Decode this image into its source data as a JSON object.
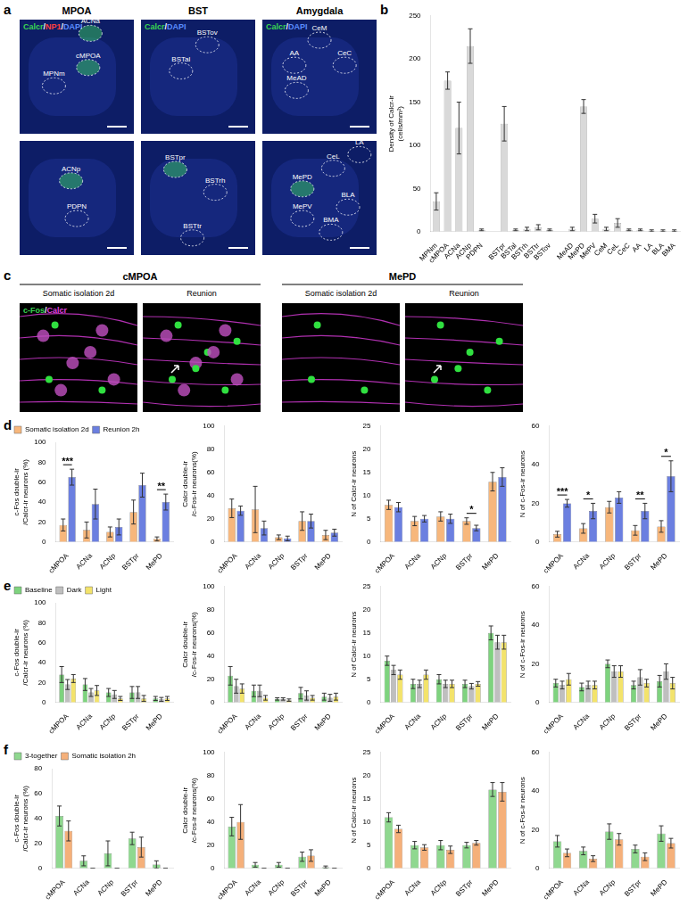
{
  "panel_labels": [
    "a",
    "b",
    "c",
    "d",
    "e",
    "f"
  ],
  "panel_a": {
    "columns": [
      "MPOA",
      "BST",
      "Amygdala"
    ],
    "images": [
      {
        "channels": [
          {
            "text": "Calcr",
            "color": "#39d353"
          },
          {
            "text": "/",
            "color": "#ffffff"
          },
          {
            "text": "NP1",
            "color": "#ff4040"
          },
          {
            "text": "/",
            "color": "#ffffff"
          },
          {
            "text": "DAPI",
            "color": "#5a8cff"
          }
        ],
        "regions": [
          "ACNa",
          "cMPOA",
          "MPNm"
        ]
      },
      {
        "channels": [
          {
            "text": "Calcr",
            "color": "#39d353"
          },
          {
            "text": "/",
            "color": "#ffffff"
          },
          {
            "text": "DAPI",
            "color": "#5a8cff"
          }
        ],
        "regions": [
          "BSTov",
          "BSTal"
        ]
      },
      {
        "channels": [
          {
            "text": "Calcr",
            "color": "#39d353"
          },
          {
            "text": "/",
            "color": "#ffffff"
          },
          {
            "text": "DAPI",
            "color": "#5a8cff"
          }
        ],
        "regions": [
          "CeM",
          "AA",
          "CeC",
          "MeAD"
        ]
      },
      {
        "channels": [],
        "regions": [
          "ACNp",
          "PDPN"
        ]
      },
      {
        "channels": [],
        "regions": [
          "BSTpr",
          "BSTrh",
          "BSTtr"
        ]
      },
      {
        "channels": [],
        "regions": [
          "LA",
          "CeL",
          "MePD",
          "BLA",
          "MePV",
          "BMA"
        ]
      }
    ]
  },
  "panel_c": {
    "channels": [
      {
        "text": "c-Fos",
        "color": "#39d353"
      },
      {
        "text": "/",
        "color": "#ffffff"
      },
      {
        "text": "Calcr",
        "color": "#e040e0"
      }
    ],
    "groups": [
      {
        "title": "cMPOA",
        "conditions": [
          "Somatic isolation 2d",
          "Reunion"
        ]
      },
      {
        "title": "MePD",
        "conditions": [
          "Somatic isolation 2d",
          "Reunion"
        ]
      }
    ]
  },
  "chart_data": [
    {
      "type": "bar",
      "y_label": [
        "Density of Calcr-ir",
        "(cells/mm²)"
      ],
      "categories": [
        "MPNm",
        "cMPOA",
        "ACNa",
        "ACNp",
        "PDPN",
        null,
        "BSTpr",
        "BSTal",
        "BSTrh",
        "BSTtr",
        "BSTov",
        null,
        "MeAD",
        "MePD",
        "MePV",
        "CeM",
        "CeL",
        "CeC",
        "AA",
        "LA",
        "BLA",
        "BMA"
      ],
      "values": [
        35,
        175,
        120,
        215,
        2,
        null,
        125,
        2,
        3,
        5,
        2,
        null,
        3,
        145,
        15,
        3,
        10,
        2,
        2,
        1,
        1,
        1
      ],
      "errors": [
        10,
        10,
        30,
        20,
        1,
        null,
        20,
        1,
        2,
        3,
        1,
        null,
        2,
        8,
        5,
        2,
        5,
        1,
        1,
        1,
        1,
        1
      ],
      "color": "#d9d9d9",
      "ylim": [
        0,
        250
      ],
      "yticks": [
        0,
        50,
        100,
        150,
        200,
        250
      ],
      "grid": false
    },
    {
      "type": "bar",
      "y_label": [
        "c-Fos double-ir",
        "/Calcr-ir neurons (%)"
      ],
      "categories": [
        "cMPOA",
        "ACNa",
        "ACNp",
        "BSTpr",
        "MePD"
      ],
      "series": [
        {
          "name": "Somatic isolation 2d",
          "color": "#f7b77c",
          "values": [
            17,
            12,
            10,
            30,
            3
          ],
          "errors": [
            6,
            8,
            5,
            12,
            2
          ]
        },
        {
          "name": "Reunion 2h",
          "color": "#6b7fe0",
          "values": [
            65,
            38,
            15,
            57,
            40
          ],
          "errors": [
            8,
            15,
            8,
            12,
            8
          ]
        }
      ],
      "ylim": [
        0,
        100
      ],
      "yticks": [
        0,
        20,
        40,
        60,
        80,
        100
      ],
      "grid": false,
      "legend": "top",
      "annotations": [
        {
          "category": "cMPOA",
          "text": "***"
        },
        {
          "category": "MePD",
          "text": "**"
        }
      ]
    },
    {
      "type": "bar",
      "y_label": [
        "Calcr double-ir",
        "/c-Fos-ir neurons(%)"
      ],
      "categories": [
        "cMPOA",
        "ACNa",
        "ACNp",
        "BSTpr",
        "MePD"
      ],
      "series": [
        {
          "color": "#f7b77c",
          "values": [
            29,
            28,
            4,
            18,
            6
          ],
          "errors": [
            8,
            20,
            2,
            8,
            4
          ]
        },
        {
          "color": "#6b7fe0",
          "values": [
            27,
            12,
            3,
            18,
            8
          ],
          "errors": [
            4,
            6,
            2,
            6,
            3
          ]
        }
      ],
      "ylim": [
        0,
        100
      ],
      "yticks": [
        0,
        20,
        40,
        60,
        80,
        100
      ],
      "grid": false
    },
    {
      "type": "bar",
      "y_label": "N of Calcr-ir neurons",
      "categories": [
        "cMPOA",
        "ACNa",
        "ACNp",
        "BSTpr",
        "MePD"
      ],
      "series": [
        {
          "color": "#f7b77c",
          "values": [
            8,
            4.5,
            5.5,
            4.5,
            13
          ],
          "errors": [
            1,
            1,
            1,
            0.7,
            2
          ]
        },
        {
          "color": "#6b7fe0",
          "values": [
            7.5,
            5,
            5,
            3,
            14
          ],
          "errors": [
            1,
            0.7,
            1,
            0.6,
            2
          ]
        }
      ],
      "ylim": [
        0,
        25
      ],
      "yticks": [
        0,
        5,
        10,
        15,
        20,
        25
      ],
      "grid": false,
      "annotations": [
        {
          "category": "BSTpr",
          "text": "*"
        }
      ]
    },
    {
      "type": "bar",
      "y_label": "N of c-Fos-ir neurons",
      "categories": [
        "cMPOA",
        "ACNa",
        "ACNp",
        "BSTpr",
        "MePD"
      ],
      "series": [
        {
          "color": "#f7b77c",
          "values": [
            4,
            7,
            18,
            6,
            8
          ],
          "errors": [
            1.5,
            2.5,
            3,
            2.5,
            3
          ]
        },
        {
          "color": "#6b7fe0",
          "values": [
            20,
            16,
            23,
            16,
            34
          ],
          "errors": [
            2,
            4,
            3,
            4,
            8
          ]
        }
      ],
      "ylim": [
        0,
        60
      ],
      "yticks": [
        0,
        20,
        40,
        60
      ],
      "grid": false,
      "annotations": [
        {
          "category": "cMPOA",
          "text": "***"
        },
        {
          "category": "ACNa",
          "text": "*"
        },
        {
          "category": "BSTpr",
          "text": "**"
        },
        {
          "category": "MePD",
          "text": "*"
        }
      ]
    },
    {
      "type": "bar",
      "y_label": [
        "c-Fos double-ir",
        "/Calcr-ir neurons (%)"
      ],
      "categories": [
        "cMPOA",
        "ACNa",
        "ACNp",
        "BSTpr",
        "MePD"
      ],
      "series": [
        {
          "name": "Baseline",
          "color": "#7ed37e",
          "values": [
            28,
            18,
            10,
            10,
            4
          ],
          "errors": [
            8,
            6,
            4,
            6,
            2
          ]
        },
        {
          "name": "Dark",
          "color": "#bfbfbf",
          "values": [
            18,
            10,
            8,
            10,
            3
          ],
          "errors": [
            5,
            4,
            4,
            6,
            2
          ]
        },
        {
          "name": "Light",
          "color": "#f3e36b",
          "values": [
            24,
            12,
            4,
            4,
            4
          ],
          "errors": [
            4,
            5,
            2,
            3,
            2
          ]
        }
      ],
      "ylim": [
        0,
        100
      ],
      "yticks": [
        0,
        20,
        40,
        60,
        80,
        100
      ],
      "grid": false,
      "legend": "top"
    },
    {
      "type": "bar",
      "y_label": [
        "Calcr double-ir",
        "/c-Fos-ir neurons(%)"
      ],
      "categories": [
        "cMPOA",
        "ACNa",
        "ACNp",
        "BSTpr",
        "MePD"
      ],
      "series": [
        {
          "color": "#7ed37e",
          "values": [
            23,
            10,
            3,
            8,
            5
          ],
          "errors": [
            8,
            5,
            1,
            5,
            3
          ]
        },
        {
          "color": "#bfbfbf",
          "values": [
            14,
            10,
            3,
            6,
            4
          ],
          "errors": [
            6,
            5,
            1,
            4,
            3
          ]
        },
        {
          "color": "#f3e36b",
          "values": [
            12,
            4,
            2,
            4,
            5
          ],
          "errors": [
            4,
            2,
            1,
            2,
            3
          ]
        }
      ],
      "ylim": [
        0,
        100
      ],
      "yticks": [
        0,
        20,
        40,
        60,
        80,
        100
      ],
      "grid": false
    },
    {
      "type": "bar",
      "y_label": "N of Calcr-ir neurons",
      "categories": [
        "cMPOA",
        "ACNa",
        "ACNp",
        "BSTpr",
        "MePD"
      ],
      "series": [
        {
          "color": "#7ed37e",
          "values": [
            9,
            4,
            5,
            4,
            15
          ],
          "errors": [
            1,
            1,
            1,
            0.8,
            1.5
          ]
        },
        {
          "color": "#bfbfbf",
          "values": [
            7,
            4,
            4,
            3.5,
            13
          ],
          "errors": [
            1,
            0.8,
            0.8,
            0.6,
            1.5
          ]
        },
        {
          "color": "#f3e36b",
          "values": [
            6,
            6,
            4,
            4,
            13
          ],
          "errors": [
            1,
            1,
            0.8,
            0.5,
            1.5
          ]
        }
      ],
      "ylim": [
        0,
        25
      ],
      "yticks": [
        0,
        5,
        10,
        15,
        20,
        25
      ],
      "grid": false
    },
    {
      "type": "bar",
      "y_label": "N of c-Fos-ir neurons",
      "categories": [
        "cMPOA",
        "ACNa",
        "ACNp",
        "BSTpr",
        "MePD"
      ],
      "series": [
        {
          "color": "#7ed37e",
          "values": [
            10,
            8,
            20,
            9,
            11
          ],
          "errors": [
            2,
            2,
            2,
            2,
            3
          ]
        },
        {
          "color": "#bfbfbf",
          "values": [
            9,
            9,
            16,
            13,
            16
          ],
          "errors": [
            2,
            2,
            3,
            4,
            4
          ]
        },
        {
          "color": "#f3e36b",
          "values": [
            12,
            9,
            16,
            10,
            10
          ],
          "errors": [
            3,
            2,
            3,
            2,
            3
          ]
        }
      ],
      "ylim": [
        0,
        60
      ],
      "yticks": [
        0,
        20,
        40,
        60
      ],
      "grid": false
    },
    {
      "type": "bar",
      "y_label": [
        "c-Fos double-ir",
        "/Calcr-ir neurons (%)"
      ],
      "categories": [
        "cMPOA",
        "ACNa",
        "ACNp",
        "BSTpr",
        "MePD"
      ],
      "series": [
        {
          "name": "3-together",
          "color": "#8fd88f",
          "values": [
            42,
            6,
            12,
            24,
            3
          ],
          "errors": [
            8,
            4,
            10,
            5,
            3
          ]
        },
        {
          "name": "Somatic isolation 2h",
          "color": "#f5b07a",
          "values": [
            30,
            0,
            0,
            17,
            0
          ],
          "errors": [
            8,
            0,
            0,
            8,
            0
          ]
        }
      ],
      "ylim": [
        0,
        80
      ],
      "yticks": [
        0,
        20,
        40,
        60,
        80
      ],
      "grid": false,
      "legend": "top"
    },
    {
      "type": "bar",
      "y_label": [
        "Calcr double-ir",
        "/c-Fos-ir neurons(%)"
      ],
      "categories": [
        "cMPOA",
        "ACNa",
        "ACNp",
        "BSTpr",
        "MePD"
      ],
      "series": [
        {
          "color": "#8fd88f",
          "values": [
            36,
            3,
            3,
            10,
            1
          ],
          "errors": [
            8,
            2,
            2,
            4,
            1
          ]
        },
        {
          "color": "#f5b07a",
          "values": [
            40,
            0,
            0,
            11,
            0
          ],
          "errors": [
            15,
            0,
            0,
            5,
            0
          ]
        }
      ],
      "ylim": [
        0,
        100
      ],
      "yticks": [
        0,
        20,
        40,
        60,
        80,
        100
      ],
      "grid": false
    },
    {
      "type": "bar",
      "y_label": "N of Calcr-ir neurons",
      "categories": [
        "cMPOA",
        "ACNa",
        "ACNp",
        "BSTpr",
        "MePD"
      ],
      "series": [
        {
          "color": "#8fd88f",
          "values": [
            11,
            5,
            5,
            5,
            17
          ],
          "errors": [
            1,
            0.8,
            1,
            0.6,
            1.5
          ]
        },
        {
          "color": "#f5b07a",
          "values": [
            8.5,
            4.5,
            4,
            5.5,
            16.5
          ],
          "errors": [
            0.8,
            0.6,
            0.8,
            0.5,
            2
          ]
        }
      ],
      "ylim": [
        0,
        25
      ],
      "yticks": [
        0,
        5,
        10,
        15,
        20,
        25
      ],
      "grid": false
    },
    {
      "type": "bar",
      "y_label": "N of c-Fos-ir neurons",
      "categories": [
        "cMPOA",
        "ACNa",
        "ACNp",
        "BSTpr",
        "MePD"
      ],
      "series": [
        {
          "color": "#8fd88f",
          "values": [
            14,
            9,
            19,
            10,
            18
          ],
          "errors": [
            3,
            2,
            4,
            2,
            4
          ]
        },
        {
          "color": "#f5b07a",
          "values": [
            8,
            5,
            15,
            6,
            13
          ],
          "errors": [
            2,
            1.5,
            3,
            2,
            2.5
          ]
        }
      ],
      "ylim": [
        0,
        60
      ],
      "yticks": [
        0,
        20,
        40,
        60
      ],
      "grid": false
    }
  ]
}
